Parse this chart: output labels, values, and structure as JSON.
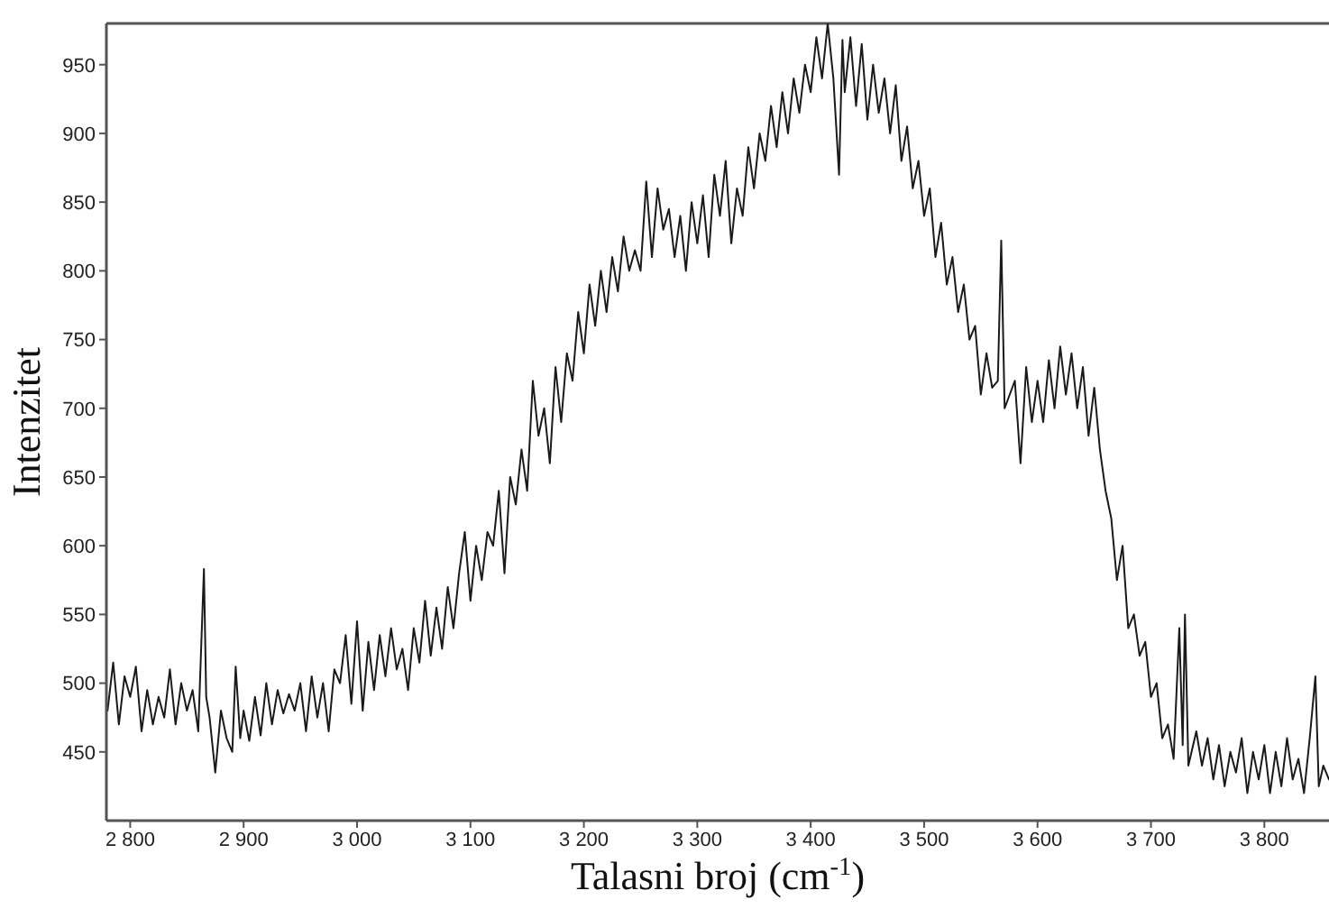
{
  "chart_data": {
    "type": "line",
    "xlabel": "Talasni broj (cm$^{-1}$)",
    "ylabel": "Intenzitet",
    "xlim": [
      2779,
      3857
    ],
    "ylim": [
      400,
      980
    ],
    "xticks": [
      {
        "value": 2800,
        "label": "2 800"
      },
      {
        "value": 2900,
        "label": "2 900"
      },
      {
        "value": 3000,
        "label": "3 000"
      },
      {
        "value": 3100,
        "label": "3 100"
      },
      {
        "value": 3200,
        "label": "3 200"
      },
      {
        "value": 3300,
        "label": "3 300"
      },
      {
        "value": 3400,
        "label": "3 400"
      },
      {
        "value": 3500,
        "label": "3 500"
      },
      {
        "value": 3600,
        "label": "3 600"
      },
      {
        "value": 3700,
        "label": "3 700"
      },
      {
        "value": 3800,
        "label": "3 800"
      }
    ],
    "yticks": [
      450,
      500,
      550,
      600,
      650,
      700,
      750,
      800,
      850,
      900,
      950
    ],
    "grid": false,
    "legend": false,
    "marker": "none",
    "line_style": "solid",
    "series": [
      {
        "color": "#1a1a1a",
        "x": [
          2780,
          2785,
          2790,
          2795,
          2800,
          2805,
          2810,
          2815,
          2820,
          2825,
          2830,
          2835,
          2840,
          2845,
          2850,
          2855,
          2860,
          2865,
          2867,
          2870,
          2875,
          2880,
          2885,
          2890,
          2893,
          2897,
          2900,
          2905,
          2910,
          2915,
          2920,
          2925,
          2930,
          2935,
          2940,
          2945,
          2950,
          2955,
          2960,
          2965,
          2970,
          2975,
          2980,
          2985,
          2990,
          2995,
          3000,
          3005,
          3010,
          3015,
          3020,
          3025,
          3030,
          3035,
          3040,
          3045,
          3050,
          3055,
          3060,
          3065,
          3070,
          3075,
          3080,
          3085,
          3090,
          3095,
          3100,
          3105,
          3110,
          3115,
          3120,
          3125,
          3130,
          3135,
          3140,
          3145,
          3150,
          3155,
          3160,
          3165,
          3170,
          3175,
          3180,
          3185,
          3190,
          3195,
          3200,
          3205,
          3210,
          3215,
          3220,
          3225,
          3230,
          3235,
          3240,
          3245,
          3250,
          3255,
          3260,
          3265,
          3270,
          3275,
          3280,
          3285,
          3290,
          3295,
          3300,
          3305,
          3310,
          3315,
          3320,
          3325,
          3330,
          3335,
          3340,
          3345,
          3350,
          3355,
          3360,
          3365,
          3370,
          3375,
          3380,
          3385,
          3390,
          3395,
          3400,
          3405,
          3410,
          3415,
          3420,
          3425,
          3428,
          3430,
          3435,
          3440,
          3445,
          3450,
          3455,
          3460,
          3465,
          3470,
          3475,
          3480,
          3485,
          3490,
          3495,
          3500,
          3505,
          3510,
          3515,
          3520,
          3525,
          3530,
          3535,
          3540,
          3545,
          3550,
          3555,
          3560,
          3565,
          3568,
          3571,
          3580,
          3585,
          3590,
          3595,
          3600,
          3605,
          3610,
          3615,
          3620,
          3625,
          3630,
          3635,
          3640,
          3645,
          3650,
          3655,
          3660,
          3665,
          3670,
          3675,
          3680,
          3685,
          3690,
          3695,
          3700,
          3705,
          3710,
          3715,
          3720,
          3725,
          3728,
          3730,
          3733,
          3740,
          3745,
          3750,
          3755,
          3760,
          3765,
          3770,
          3775,
          3780,
          3785,
          3790,
          3795,
          3800,
          3805,
          3810,
          3815,
          3820,
          3825,
          3830,
          3835,
          3840,
          3845,
          3848,
          3852,
          3857
        ],
        "values": [
          480,
          515,
          470,
          505,
          490,
          512,
          465,
          495,
          470,
          490,
          475,
          510,
          470,
          500,
          480,
          495,
          465,
          583,
          490,
          475,
          435,
          480,
          460,
          450,
          512,
          460,
          480,
          458,
          490,
          462,
          500,
          470,
          495,
          478,
          492,
          480,
          500,
          465,
          505,
          475,
          500,
          465,
          510,
          500,
          535,
          485,
          545,
          480,
          530,
          495,
          535,
          505,
          540,
          510,
          525,
          495,
          540,
          515,
          560,
          520,
          555,
          525,
          570,
          540,
          580,
          610,
          560,
          600,
          575,
          610,
          600,
          640,
          580,
          650,
          630,
          670,
          640,
          720,
          680,
          700,
          660,
          730,
          690,
          740,
          720,
          770,
          740,
          790,
          760,
          800,
          770,
          810,
          785,
          825,
          800,
          815,
          800,
          865,
          810,
          860,
          830,
          845,
          810,
          840,
          800,
          850,
          820,
          855,
          810,
          870,
          840,
          880,
          820,
          860,
          840,
          890,
          860,
          900,
          880,
          920,
          890,
          930,
          900,
          940,
          915,
          950,
          930,
          970,
          940,
          980,
          940,
          870,
          968,
          930,
          970,
          920,
          965,
          910,
          950,
          915,
          940,
          900,
          935,
          880,
          905,
          860,
          880,
          840,
          860,
          810,
          835,
          790,
          810,
          770,
          790,
          750,
          760,
          710,
          740,
          715,
          720,
          822,
          700,
          720,
          660,
          730,
          690,
          720,
          690,
          735,
          700,
          745,
          710,
          740,
          700,
          730,
          680,
          715,
          670,
          640,
          620,
          575,
          600,
          540,
          550,
          520,
          530,
          490,
          500,
          460,
          470,
          445,
          540,
          455,
          550,
          440,
          465,
          440,
          460,
          430,
          455,
          425,
          450,
          435,
          460,
          420,
          450,
          430,
          455,
          420,
          450,
          425,
          460,
          430,
          445,
          420,
          460,
          505,
          425,
          440,
          430
        ]
      }
    ]
  }
}
